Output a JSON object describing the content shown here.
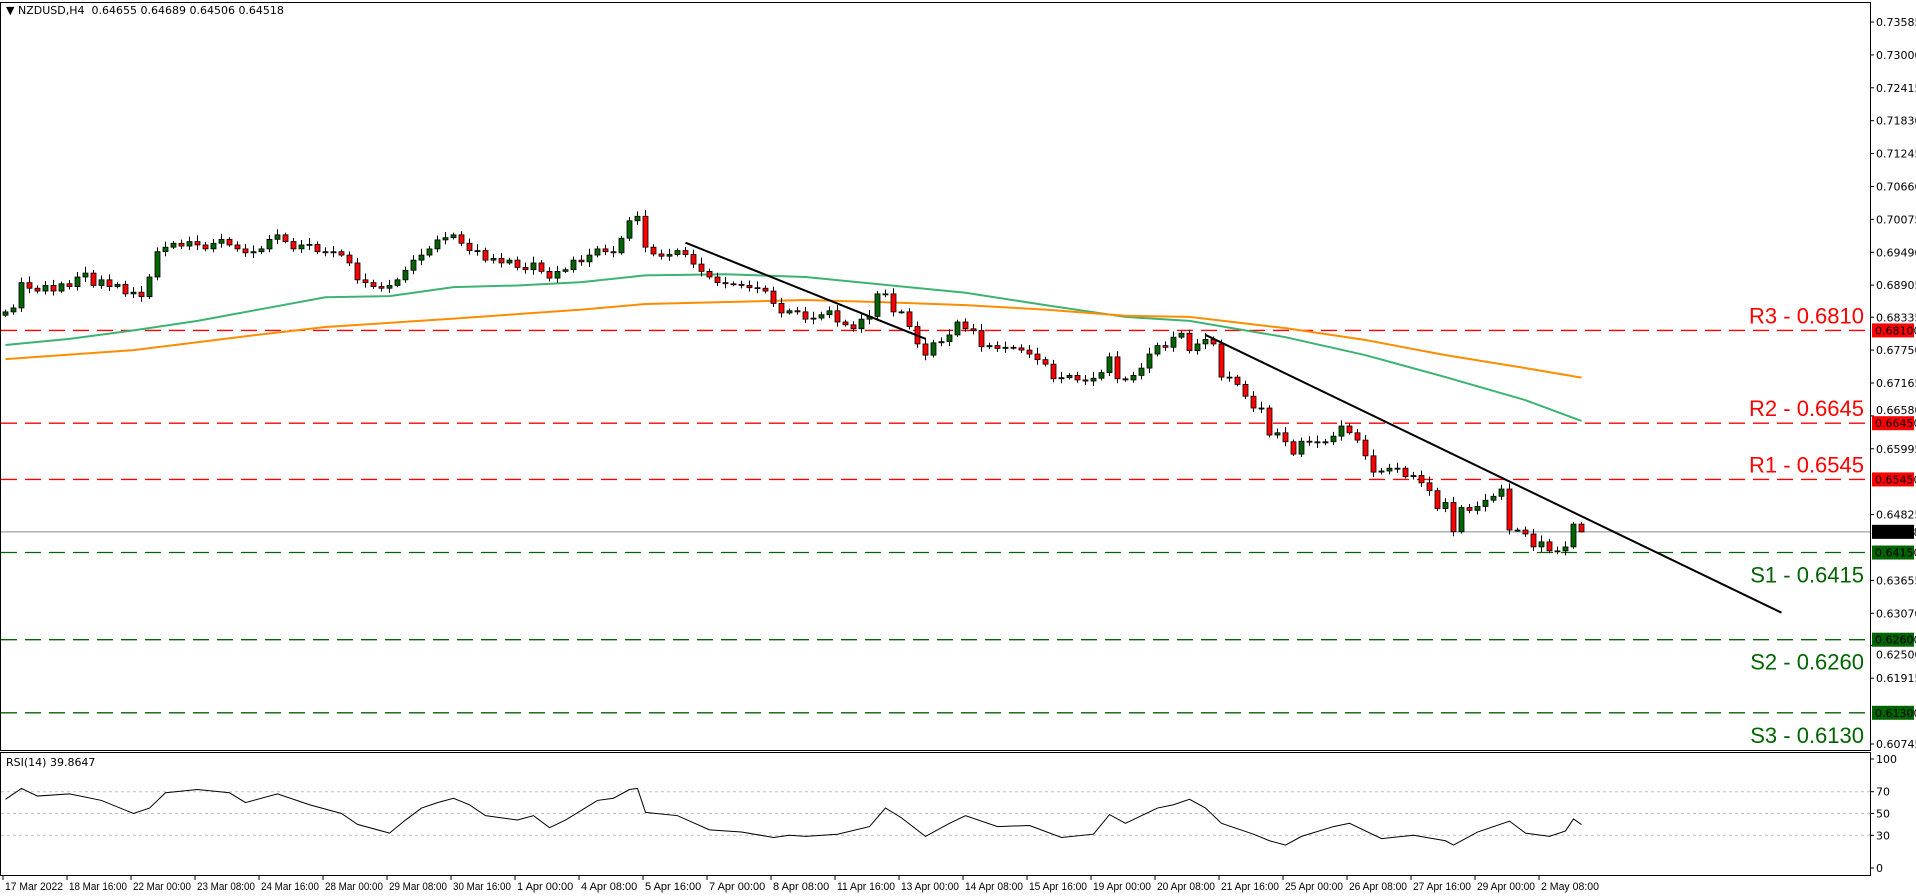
{
  "header": {
    "symbol": "NZDUSD,H4",
    "ohlc": "0.64655 0.64689 0.64506 0.64518",
    "collapse_icon": "triangle-down-icon"
  },
  "rsi_header": "RSI(14) 39.8647",
  "colors": {
    "bull": "#006400",
    "bear": "#ff0000",
    "ma_fast": "#3cb371",
    "ma_slow": "#ff8c00",
    "resistance": "#ff0000",
    "support": "#006400",
    "current_price": "#7f8c99",
    "trendline": "#000000"
  },
  "chart_data": [
    {
      "type": "candlestick",
      "title": "NZDUSD,H4",
      "timeframe": "H4",
      "last_bar": {
        "open": 0.64655,
        "high": 0.64689,
        "low": 0.64506,
        "close": 0.64518
      },
      "current_price": "0.64518",
      "ylim": [
        0.60745,
        0.73585
      ],
      "y_ticks": [
        "0.73585",
        "0.73000",
        "0.72415",
        "0.71830",
        "0.71245",
        "0.70660",
        "0.70075",
        "0.69490",
        "0.68905",
        "0.68335",
        "0.67750",
        "0.67165",
        "0.66580",
        "0.65995",
        "0.64825",
        "0.63655",
        "0.63070",
        "0.62500",
        "0.61915",
        "0.60745"
      ],
      "x_ticks": [
        "17 Mar 2022",
        "18 Mar 16:00",
        "22 Mar 00:00",
        "23 Mar 08:00",
        "24 Mar 16:00",
        "28 Mar 00:00",
        "29 Mar 08:00",
        "30 Mar 16:00",
        "1 Apr 00:00",
        "4 Apr 08:00",
        "5 Apr 16:00",
        "7 Apr 00:00",
        "8 Apr 08:00",
        "11 Apr 16:00",
        "13 Apr 00:00",
        "14 Apr 08:00",
        "15 Apr 16:00",
        "19 Apr 00:00",
        "20 Apr 08:00",
        "21 Apr 16:00",
        "25 Apr 00:00",
        "26 Apr 08:00",
        "27 Apr 16:00",
        "29 Apr 00:00",
        "2 May 08:00"
      ],
      "bars_per_x_tick": 8,
      "closes": [
        0.6843,
        0.685,
        0.6895,
        0.6885,
        0.688,
        0.689,
        0.688,
        0.6893,
        0.6888,
        0.6905,
        0.6912,
        0.689,
        0.69,
        0.6888,
        0.6892,
        0.6875,
        0.6878,
        0.687,
        0.6905,
        0.695,
        0.6958,
        0.6965,
        0.696,
        0.6968,
        0.6962,
        0.6955,
        0.6965,
        0.6972,
        0.6962,
        0.6955,
        0.6948,
        0.695,
        0.6955,
        0.6972,
        0.698,
        0.6968,
        0.6955,
        0.6962,
        0.6963,
        0.695,
        0.6948,
        0.695,
        0.6944,
        0.693,
        0.69,
        0.6895,
        0.6888,
        0.6885,
        0.689,
        0.69,
        0.6917,
        0.6935,
        0.6944,
        0.6955,
        0.6971,
        0.6975,
        0.698,
        0.6965,
        0.6952,
        0.6952,
        0.6935,
        0.6938,
        0.693,
        0.6935,
        0.6922,
        0.6918,
        0.693,
        0.6915,
        0.6903,
        0.6915,
        0.6918,
        0.6935,
        0.6932,
        0.6944,
        0.6955,
        0.695,
        0.6948,
        0.6974,
        0.7005,
        0.7013,
        0.6958,
        0.6946,
        0.6942,
        0.6945,
        0.6952,
        0.6945,
        0.6928,
        0.6915,
        0.6905,
        0.6895,
        0.6893,
        0.6892,
        0.689,
        0.6886,
        0.6885,
        0.688,
        0.6858,
        0.6841,
        0.6845,
        0.6843,
        0.683,
        0.6832,
        0.6838,
        0.6845,
        0.6825,
        0.682,
        0.6813,
        0.683,
        0.6835,
        0.6875,
        0.6875,
        0.6843,
        0.6843,
        0.6817,
        0.6786,
        0.6766,
        0.6788,
        0.679,
        0.6802,
        0.6825,
        0.6813,
        0.681,
        0.6781,
        0.6783,
        0.6778,
        0.678,
        0.6779,
        0.6775,
        0.6768,
        0.6758,
        0.675,
        0.6724,
        0.6726,
        0.673,
        0.6722,
        0.672,
        0.6725,
        0.6735,
        0.6763,
        0.6724,
        0.6722,
        0.673,
        0.6743,
        0.6768,
        0.6783,
        0.678,
        0.6798,
        0.6805,
        0.6774,
        0.6786,
        0.6794,
        0.6786,
        0.6727,
        0.6727,
        0.6714,
        0.6693,
        0.6672,
        0.6672,
        0.6624,
        0.6628,
        0.6612,
        0.659,
        0.6613,
        0.6612,
        0.661,
        0.6612,
        0.6622,
        0.664,
        0.6628,
        0.6615,
        0.6587,
        0.6558,
        0.656,
        0.6565,
        0.6565,
        0.655,
        0.6552,
        0.6539,
        0.6525,
        0.6493,
        0.6504,
        0.6452,
        0.6495,
        0.649,
        0.6497,
        0.6508,
        0.6515,
        0.6528,
        0.6455,
        0.6455,
        0.6448,
        0.6425,
        0.6434,
        0.6418,
        0.6418,
        0.6425,
        0.64655,
        0.64518
      ],
      "moving_averages": [
        {
          "color": "#3cb371",
          "points": [
            [
              0,
              0.6784
            ],
            [
              8,
              0.6795
            ],
            [
              16,
              0.681
            ],
            [
              24,
              0.6827
            ],
            [
              32,
              0.6848
            ],
            [
              40,
              0.6869
            ],
            [
              48,
              0.6871
            ],
            [
              56,
              0.6887
            ],
            [
              64,
              0.689
            ],
            [
              72,
              0.6896
            ],
            [
              80,
              0.6908
            ],
            [
              90,
              0.691
            ],
            [
              100,
              0.6905
            ],
            [
              110,
              0.6891
            ],
            [
              120,
              0.6877
            ],
            [
              130,
              0.6855
            ],
            [
              140,
              0.6834
            ],
            [
              148,
              0.6827
            ],
            [
              160,
              0.6798
            ],
            [
              170,
              0.6766
            ],
            [
              180,
              0.6727
            ],
            [
              190,
              0.6686
            ],
            [
              197,
              0.6649
            ]
          ]
        },
        {
          "color": "#ff8c00",
          "points": [
            [
              0,
              0.6759
            ],
            [
              16,
              0.6775
            ],
            [
              32,
              0.6803
            ],
            [
              40,
              0.6816
            ],
            [
              56,
              0.6831
            ],
            [
              72,
              0.6847
            ],
            [
              80,
              0.6857
            ],
            [
              100,
              0.6864
            ],
            [
              110,
              0.686
            ],
            [
              120,
              0.6855
            ],
            [
              130,
              0.6847
            ],
            [
              140,
              0.6836
            ],
            [
              148,
              0.6834
            ],
            [
              160,
              0.6814
            ],
            [
              170,
              0.6793
            ],
            [
              180,
              0.6766
            ],
            [
              190,
              0.6743
            ],
            [
              197,
              0.6726
            ]
          ]
        }
      ],
      "trendlines": [
        {
          "from": [
            85,
            0.6966
          ],
          "to": [
            115,
            0.6795
          ]
        },
        {
          "from": [
            150,
            0.6802
          ],
          "to": [
            222,
            0.6308
          ]
        }
      ],
      "levels": [
        {
          "label": "R3 - 0.6810",
          "price": 0.681,
          "tag": "0.68100",
          "kind": "resistance"
        },
        {
          "label": "R2 - 0.6645",
          "price": 0.6645,
          "tag": "0.66450",
          "kind": "resistance"
        },
        {
          "label": "R1 - 0.6545",
          "price": 0.6545,
          "tag": "0.65450",
          "kind": "resistance"
        },
        {
          "label": "S1 - 0.6415",
          "price": 0.6415,
          "tag": "0.64150",
          "kind": "support"
        },
        {
          "label": "S2 - 0.6260",
          "price": 0.626,
          "tag": "0.62600",
          "kind": "support"
        },
        {
          "label": "S3 - 0.6130",
          "price": 0.613,
          "tag": "0.61300",
          "kind": "support"
        }
      ]
    },
    {
      "type": "line",
      "title": "RSI(14) 39.8647",
      "ylim": [
        0,
        100
      ],
      "y_ticks": [
        "100",
        "70",
        "50",
        "30",
        "0"
      ],
      "guide_levels": [
        70,
        50,
        30
      ],
      "points": [
        [
          0,
          63
        ],
        [
          2,
          73
        ],
        [
          4,
          66
        ],
        [
          8,
          68
        ],
        [
          12,
          62
        ],
        [
          16,
          50
        ],
        [
          18,
          55
        ],
        [
          20,
          69
        ],
        [
          24,
          72
        ],
        [
          28,
          69
        ],
        [
          30,
          60
        ],
        [
          34,
          68
        ],
        [
          38,
          58
        ],
        [
          42,
          50
        ],
        [
          44,
          40
        ],
        [
          48,
          32
        ],
        [
          50,
          44
        ],
        [
          52,
          55
        ],
        [
          54,
          60
        ],
        [
          56,
          64
        ],
        [
          58,
          58
        ],
        [
          60,
          48
        ],
        [
          64,
          44
        ],
        [
          66,
          48
        ],
        [
          68,
          37
        ],
        [
          70,
          44
        ],
        [
          74,
          62
        ],
        [
          76,
          64
        ],
        [
          78,
          72
        ],
        [
          79,
          73
        ],
        [
          80,
          51
        ],
        [
          84,
          48
        ],
        [
          88,
          35
        ],
        [
          92,
          33
        ],
        [
          96,
          28
        ],
        [
          98,
          30
        ],
        [
          100,
          29
        ],
        [
          104,
          31
        ],
        [
          108,
          38
        ],
        [
          110,
          55
        ],
        [
          112,
          46
        ],
        [
          115,
          29
        ],
        [
          118,
          41
        ],
        [
          120,
          48
        ],
        [
          124,
          38
        ],
        [
          128,
          39
        ],
        [
          132,
          28
        ],
        [
          136,
          31
        ],
        [
          138,
          49
        ],
        [
          140,
          41
        ],
        [
          142,
          48
        ],
        [
          144,
          55
        ],
        [
          146,
          58
        ],
        [
          148,
          63
        ],
        [
          150,
          55
        ],
        [
          152,
          41
        ],
        [
          156,
          31
        ],
        [
          158,
          25
        ],
        [
          160,
          21
        ],
        [
          162,
          29
        ],
        [
          166,
          38
        ],
        [
          168,
          41
        ],
        [
          172,
          27
        ],
        [
          176,
          30
        ],
        [
          180,
          25
        ],
        [
          181,
          21
        ],
        [
          184,
          33
        ],
        [
          188,
          43
        ],
        [
          190,
          32
        ],
        [
          193,
          29
        ],
        [
          195,
          34
        ],
        [
          196,
          45
        ],
        [
          197,
          39.86
        ]
      ]
    }
  ]
}
